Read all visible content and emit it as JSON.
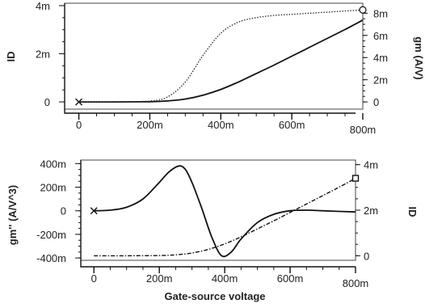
{
  "chart_data": [
    {
      "type": "line",
      "x_ticks": [
        "0",
        "200m",
        "400m",
        "600m",
        "800m"
      ],
      "x_tick_values": [
        0,
        0.2,
        0.4,
        0.6,
        0.8
      ],
      "xlim": [
        -0.04,
        0.8
      ],
      "y_left_label": "ID",
      "y_left_ticks": [
        "0",
        "2m",
        "4m"
      ],
      "y_left_tick_values": [
        0,
        0.002,
        0.004
      ],
      "y_left_lim": [
        -0.0003,
        0.0041
      ],
      "y_right_label": "gm (A/V)",
      "y_right_ticks": [
        "0",
        "2m",
        "4m",
        "6m",
        "8m"
      ],
      "y_right_tick_values": [
        0,
        0.002,
        0.004,
        0.006,
        0.008
      ],
      "y_right_lim": [
        -0.00065,
        0.0089
      ],
      "series": [
        {
          "axis": "left",
          "style": "solid",
          "x": [
            0,
            0.1,
            0.2,
            0.25,
            0.3,
            0.35,
            0.4,
            0.45,
            0.5,
            0.55,
            0.6,
            0.65,
            0.7,
            0.75,
            0.8
          ],
          "y": [
            0,
            0,
            1e-05,
            4e-05,
            0.00012,
            0.00028,
            0.00052,
            0.00083,
            0.00118,
            0.00153,
            0.0019,
            0.00227,
            0.00264,
            0.00301,
            0.0034
          ]
        },
        {
          "axis": "right",
          "style": "dotted",
          "x": [
            0,
            0.1,
            0.2,
            0.25,
            0.3,
            0.35,
            0.4,
            0.45,
            0.5,
            0.55,
            0.6,
            0.65,
            0.7,
            0.75,
            0.8
          ],
          "y": [
            0,
            0,
            8e-05,
            0.00045,
            0.0018,
            0.0042,
            0.0062,
            0.0072,
            0.0076,
            0.0078,
            0.0079,
            0.008,
            0.0081,
            0.0082,
            0.0083
          ]
        }
      ]
    },
    {
      "type": "line",
      "xlabel": "Gate-source voltage",
      "x_ticks": [
        "0",
        "200m",
        "400m",
        "600m",
        "800m"
      ],
      "x_tick_values": [
        0,
        0.2,
        0.4,
        0.6,
        0.8
      ],
      "xlim": [
        -0.04,
        0.8
      ],
      "y_left_label": "gm'' (A/V^3)",
      "y_left_ticks": [
        "400m",
        "200m",
        "0",
        "-200m",
        "-400m"
      ],
      "y_left_tick_values": [
        0.4,
        0.2,
        0,
        -0.2,
        -0.4
      ],
      "y_left_lim": [
        -0.42,
        0.43
      ],
      "y_right_label": "ID",
      "y_right_ticks": [
        "4m",
        "2m",
        "0"
      ],
      "y_right_tick_values": [
        0.004,
        0.002,
        0
      ],
      "y_right_lim": [
        -0.0002,
        0.0042
      ],
      "series": [
        {
          "axis": "left",
          "style": "solid",
          "x": [
            0,
            0.05,
            0.1,
            0.15,
            0.2,
            0.23,
            0.26,
            0.28,
            0.3,
            0.33,
            0.36,
            0.39,
            0.42,
            0.45,
            0.5,
            0.55,
            0.6,
            0.65,
            0.7,
            0.75,
            0.8
          ],
          "y": [
            0,
            0.005,
            0.03,
            0.1,
            0.24,
            0.33,
            0.38,
            0.35,
            0.24,
            0.02,
            -0.22,
            -0.38,
            -0.35,
            -0.24,
            -0.1,
            -0.03,
            0,
            0.005,
            0,
            -0.005,
            -0.01
          ]
        },
        {
          "axis": "right",
          "style": "dashdot",
          "x": [
            0,
            0.1,
            0.2,
            0.25,
            0.3,
            0.35,
            0.4,
            0.45,
            0.5,
            0.55,
            0.6,
            0.65,
            0.7,
            0.75,
            0.8
          ],
          "y": [
            0,
            0,
            1e-05,
            4e-05,
            0.00012,
            0.00028,
            0.00052,
            0.00083,
            0.00118,
            0.00153,
            0.0019,
            0.00227,
            0.00264,
            0.00301,
            0.0034
          ]
        }
      ]
    }
  ]
}
